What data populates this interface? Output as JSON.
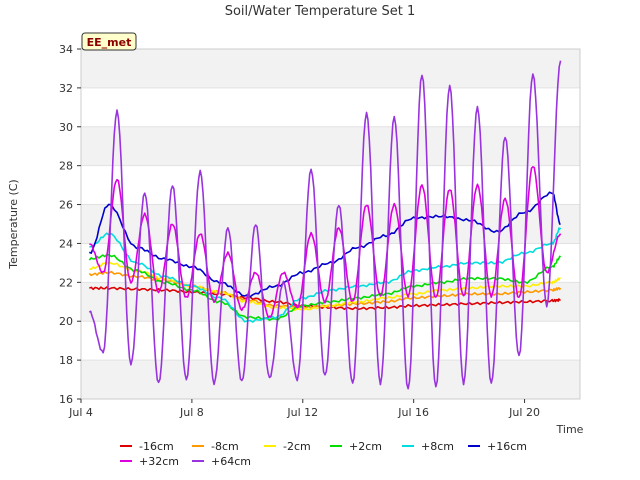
{
  "chart_data": {
    "type": "line",
    "title": "Soil/Water Temperature Set 1",
    "xlabel": "Time",
    "ylabel": "Temperature (C)",
    "badge": "EE_met",
    "xlim": [
      0.0,
      18.0
    ],
    "ylim": [
      16,
      34
    ],
    "x_ticks": [
      {
        "value": 0,
        "label": "Jul 4"
      },
      {
        "value": 4,
        "label": "Jul 8"
      },
      {
        "value": 8,
        "label": "Jul 12"
      },
      {
        "value": 12,
        "label": "Jul 16"
      },
      {
        "value": 16,
        "label": "Jul 20"
      }
    ],
    "y_ticks": [
      16,
      18,
      20,
      22,
      24,
      26,
      28,
      30,
      32,
      34
    ],
    "grid": true,
    "legend_position": "bottom",
    "series": [
      {
        "name": "-16cm",
        "color": "#dd0000",
        "x": [
          0.3,
          1,
          2,
          3,
          4,
          5,
          6,
          7,
          8,
          9,
          10,
          11,
          12,
          13,
          14,
          15,
          16,
          17,
          17.3
        ],
        "y": [
          21.7,
          21.7,
          21.65,
          21.6,
          21.5,
          21.4,
          21.2,
          21.0,
          20.8,
          20.7,
          20.65,
          20.7,
          20.8,
          20.85,
          20.9,
          20.95,
          21.0,
          21.05,
          21.1
        ]
      },
      {
        "name": "-8cm",
        "color": "#ff9900",
        "x": [
          0.3,
          1,
          2,
          3,
          4,
          5,
          6,
          7,
          8,
          9,
          10,
          11,
          12,
          13,
          14,
          15,
          16,
          17,
          17.3
        ],
        "y": [
          22.4,
          22.5,
          22.3,
          22.1,
          21.8,
          21.5,
          21.1,
          20.8,
          20.7,
          20.8,
          20.9,
          21.0,
          21.2,
          21.3,
          21.4,
          21.4,
          21.5,
          21.6,
          21.7
        ]
      },
      {
        "name": "-2cm",
        "color": "#ffee00",
        "x": [
          0.3,
          1,
          2,
          3,
          4,
          5,
          6,
          7,
          8,
          9,
          10,
          11,
          12,
          13,
          14,
          15,
          16,
          17,
          17.3
        ],
        "y": [
          22.7,
          23.0,
          22.6,
          22.2,
          21.8,
          21.5,
          21.0,
          20.7,
          20.6,
          20.8,
          21.0,
          21.2,
          21.4,
          21.6,
          21.7,
          21.8,
          21.8,
          22.0,
          22.2
        ]
      },
      {
        "name": "+2cm",
        "color": "#00dd00",
        "x": [
          0.3,
          1,
          2,
          3,
          4,
          5,
          6,
          7,
          8,
          9,
          10,
          11,
          12,
          13,
          14,
          15,
          16,
          17,
          17.3
        ],
        "y": [
          23.2,
          23.4,
          22.6,
          22.0,
          21.6,
          21.0,
          20.2,
          20.1,
          20.8,
          21.0,
          21.2,
          21.4,
          21.8,
          22.0,
          22.2,
          22.2,
          22.0,
          22.8,
          23.3
        ]
      },
      {
        "name": "+8cm",
        "color": "#00dddd",
        "x": [
          0.3,
          1,
          2,
          3,
          4,
          5,
          6,
          7,
          8,
          9,
          10,
          11,
          12,
          13,
          14,
          15,
          16,
          17,
          17.3
        ],
        "y": [
          23.8,
          24.5,
          23.0,
          22.3,
          21.8,
          21.2,
          20.0,
          20.2,
          21.2,
          21.6,
          21.8,
          22.0,
          22.6,
          22.8,
          23.0,
          23.0,
          23.5,
          24.0,
          24.8
        ]
      },
      {
        "name": "+16cm",
        "color": "#0000cc",
        "x": [
          0.3,
          1,
          2,
          3,
          4,
          5,
          6,
          7,
          8,
          9,
          10,
          11,
          12,
          13,
          14,
          15,
          16,
          17,
          17.3
        ],
        "y": [
          23.5,
          26.0,
          23.8,
          23.2,
          22.8,
          22.0,
          21.3,
          21.8,
          22.5,
          23.0,
          23.8,
          24.4,
          25.3,
          25.4,
          25.2,
          24.6,
          25.6,
          26.6,
          25.0
        ]
      },
      {
        "name": "+32cm",
        "color": "#dd00dd",
        "x": [
          0.3,
          0.8,
          1.3,
          1.8,
          2.3,
          2.8,
          3.3,
          3.8,
          4.3,
          4.8,
          5.3,
          5.8,
          6.3,
          6.8,
          7.3,
          7.8,
          8.3,
          8.8,
          9.3,
          9.8,
          10.3,
          10.8,
          11.3,
          11.8,
          12.3,
          12.8,
          13.3,
          13.8,
          14.3,
          14.8,
          15.3,
          15.8,
          16.3,
          16.8,
          17.3
        ],
        "y": [
          24.0,
          22.5,
          27.3,
          22.0,
          25.5,
          21.5,
          25.0,
          21.2,
          24.5,
          21.0,
          23.5,
          20.6,
          22.5,
          20.2,
          22.5,
          20.7,
          24.5,
          21.0,
          24.8,
          21.0,
          26.0,
          21.3,
          26.0,
          21.3,
          27.0,
          21.2,
          26.8,
          21.3,
          27.0,
          21.3,
          26.3,
          21.2,
          28.0,
          22.5,
          24.5
        ]
      },
      {
        "name": "+64cm",
        "color": "#9933dd",
        "x": [
          0.3,
          0.8,
          1.3,
          1.8,
          2.3,
          2.8,
          3.3,
          3.8,
          4.3,
          4.8,
          5.3,
          5.8,
          6.3,
          6.8,
          7.3,
          7.8,
          8.3,
          8.8,
          9.3,
          9.8,
          10.3,
          10.8,
          11.3,
          11.8,
          12.3,
          12.8,
          13.3,
          13.8,
          14.3,
          14.8,
          15.3,
          15.8,
          16.3,
          16.8,
          17.3
        ],
        "y": [
          20.5,
          18.4,
          30.8,
          17.8,
          26.6,
          16.8,
          27.0,
          17.0,
          27.7,
          16.8,
          24.8,
          16.9,
          25.0,
          17.1,
          22.0,
          17.0,
          27.8,
          17.2,
          26.0,
          16.8,
          30.7,
          16.8,
          30.5,
          16.5,
          32.7,
          16.6,
          32.1,
          16.8,
          31.0,
          16.8,
          29.5,
          18.2,
          32.7,
          20.8,
          33.4
        ]
      }
    ]
  }
}
